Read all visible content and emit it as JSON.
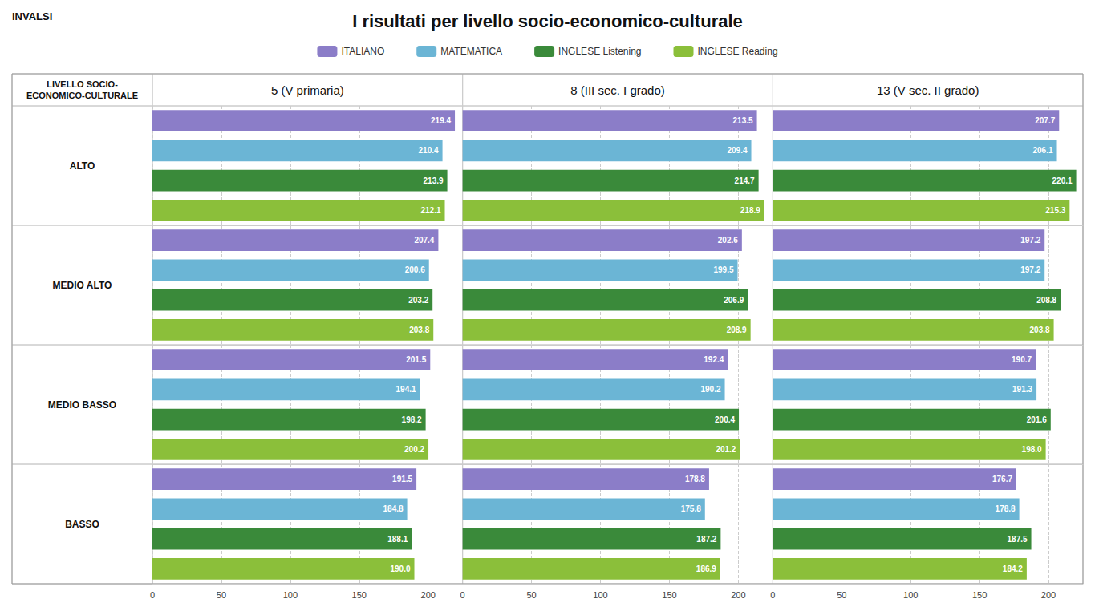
{
  "chart_data": {
    "type": "bar",
    "orientation": "horizontal",
    "title": "I risultati per livello socio-economico-culturale",
    "annotations": [
      "INVALSI"
    ],
    "row_header": "LIVELLO SOCIO-\nECONOMICO-CULTURALE",
    "rows": [
      "ALTO",
      "MEDIO ALTO",
      "MEDIO BASSO",
      "BASSO"
    ],
    "columns": [
      "5 (V primaria)",
      "8 (III sec. I grado)",
      "13 (V sec. II grado)"
    ],
    "series": [
      {
        "name": "ITALIANO",
        "color": "#8B7DC8"
      },
      {
        "name": "MATEMATICA",
        "color": "#6BB5D5"
      },
      {
        "name": "INGLESE Listening",
        "color": "#3A8A3A"
      },
      {
        "name": "INGLESE Reading",
        "color": "#8BBF3A"
      }
    ],
    "panels": [
      {
        "row": "ALTO",
        "column": "5 (V primaria)",
        "values": [
          219.4,
          210.4,
          213.9,
          212.1
        ]
      },
      {
        "row": "ALTO",
        "column": "8 (III sec. I grado)",
        "values": [
          213.5,
          209.4,
          214.7,
          218.9
        ]
      },
      {
        "row": "ALTO",
        "column": "13 (V sec. II grado)",
        "values": [
          207.7,
          206.1,
          220.1,
          215.3
        ]
      },
      {
        "row": "MEDIO ALTO",
        "column": "5 (V primaria)",
        "values": [
          207.4,
          200.6,
          203.2,
          203.8
        ]
      },
      {
        "row": "MEDIO ALTO",
        "column": "8 (III sec. I grado)",
        "values": [
          202.6,
          199.5,
          206.9,
          208.9
        ]
      },
      {
        "row": "MEDIO ALTO",
        "column": "13 (V sec. II grado)",
        "values": [
          197.2,
          197.2,
          208.8,
          203.8
        ]
      },
      {
        "row": "MEDIO BASSO",
        "column": "5 (V primaria)",
        "values": [
          201.5,
          194.1,
          198.2,
          200.2
        ]
      },
      {
        "row": "MEDIO BASSO",
        "column": "8 (III sec. I grado)",
        "values": [
          192.4,
          190.2,
          200.4,
          201.2
        ]
      },
      {
        "row": "MEDIO BASSO",
        "column": "13 (V sec. II grado)",
        "values": [
          190.7,
          191.3,
          201.6,
          198.0
        ]
      },
      {
        "row": "BASSO",
        "column": "5 (V primaria)",
        "values": [
          191.5,
          184.8,
          188.1,
          190.0
        ]
      },
      {
        "row": "BASSO",
        "column": "8 (III sec. I grado)",
        "values": [
          178.8,
          175.8,
          187.2,
          186.9
        ]
      },
      {
        "row": "BASSO",
        "column": "13 (V sec. II grado)",
        "values": [
          176.7,
          178.8,
          187.5,
          184.2
        ]
      }
    ],
    "xlim": [
      0,
      225
    ],
    "xticks": [
      0,
      50,
      100,
      150,
      200
    ],
    "grid": true,
    "data_labels": true,
    "tick_labels": "x",
    "legend": "top"
  }
}
